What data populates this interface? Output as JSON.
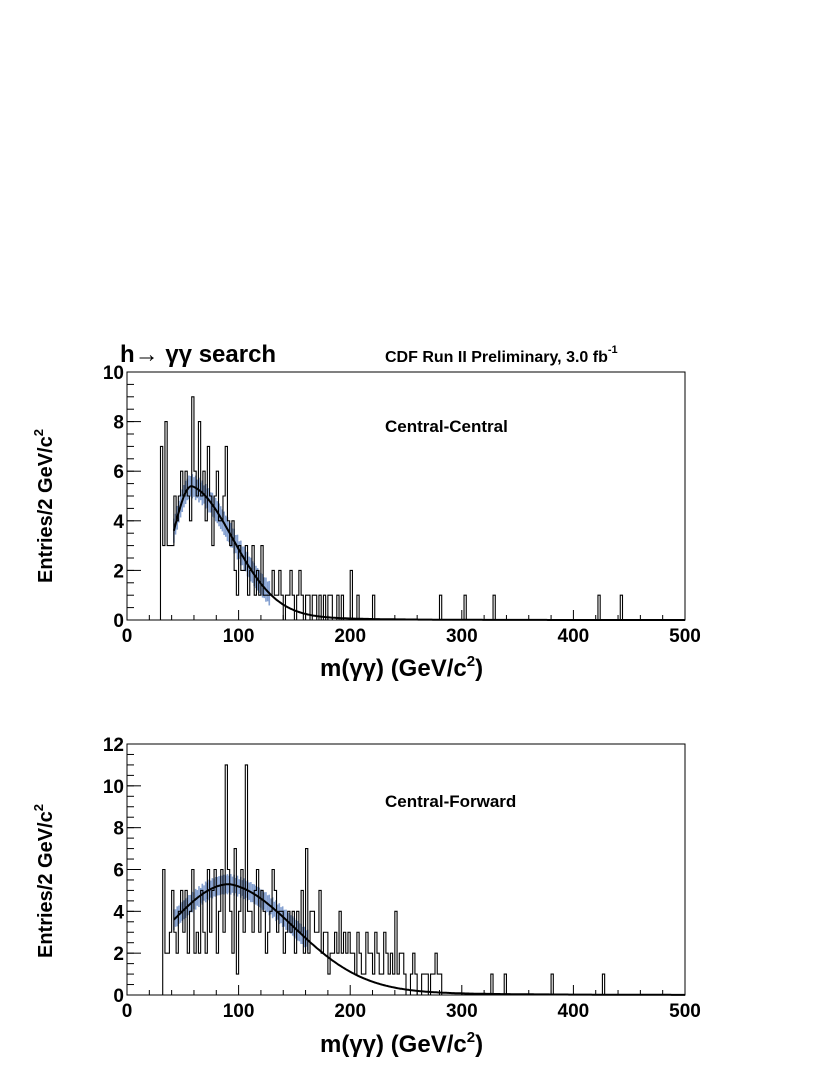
{
  "header": {
    "title": "h→ γγ search",
    "experiment": "CDF Run II Preliminary, 3.0 fb",
    "experiment_sup": "-1"
  },
  "colors": {
    "band": "#6f8fc8",
    "line": "#000000"
  },
  "chart_data": [
    {
      "type": "histogram",
      "category": "Central-Central",
      "xlabel": "m(γγ) (GeV/c",
      "xlabel_sup": "2",
      "xlabel_end": ")",
      "ylabel": "Entries/2 GeV/c",
      "ylabel_sup": "2",
      "xlim": [
        0,
        500
      ],
      "ylim": [
        0,
        10
      ],
      "xticks": [
        0,
        100,
        200,
        300,
        400,
        500
      ],
      "yticks": [
        0,
        2,
        4,
        6,
        8,
        10
      ],
      "bin_width": 2,
      "bins_x": [
        30,
        32,
        34,
        36,
        38,
        40,
        42,
        44,
        46,
        48,
        50,
        52,
        54,
        56,
        58,
        60,
        62,
        64,
        66,
        68,
        70,
        72,
        74,
        76,
        78,
        80,
        82,
        84,
        86,
        88,
        90,
        92,
        94,
        96,
        98,
        100,
        102,
        104,
        106,
        108,
        110,
        112,
        114,
        116,
        118,
        120,
        122,
        124,
        126,
        128,
        130,
        132,
        134,
        136,
        138,
        140,
        142,
        144,
        146,
        148,
        150,
        152,
        154,
        156,
        158,
        160,
        162,
        164,
        166,
        168,
        170,
        172,
        174,
        176,
        178,
        180,
        182,
        184,
        186,
        188,
        190,
        192,
        194,
        196,
        198,
        200,
        202,
        204,
        206,
        208,
        210,
        212,
        214,
        216,
        218,
        220,
        222,
        280,
        282,
        302,
        304,
        328,
        330,
        422,
        424,
        442,
        444
      ],
      "bins_y": [
        7,
        3,
        8,
        3,
        3,
        3,
        5,
        4,
        5,
        6,
        5,
        6,
        5,
        4,
        9,
        6,
        5,
        8,
        5,
        6,
        4,
        7,
        5,
        3,
        5,
        6,
        4,
        4,
        5,
        7,
        4,
        3,
        4,
        2,
        1,
        3,
        2,
        2,
        3,
        1,
        2,
        3,
        1,
        2,
        1,
        3,
        1,
        1,
        1,
        1,
        2,
        1,
        1,
        2,
        1,
        0,
        1,
        1,
        2,
        1,
        0,
        1,
        2,
        1,
        0,
        1,
        1,
        0,
        1,
        1,
        0,
        1,
        0,
        1,
        0,
        1,
        1,
        0,
        0,
        1,
        0,
        1,
        0,
        0,
        0,
        2,
        0,
        0,
        1,
        0,
        0,
        0,
        0,
        0,
        0,
        1,
        0,
        1,
        0,
        1,
        0,
        1,
        0,
        1,
        0,
        1,
        0
      ],
      "fit_peak_x": 58,
      "fit_peak_y": 5.4,
      "fit_start_x": 42,
      "fit_start_y": 3.6
    },
    {
      "type": "histogram",
      "category": "Central-Forward",
      "xlabel": "m(γγ) (GeV/c",
      "xlabel_sup": "2",
      "xlabel_end": ")",
      "ylabel": "Entries/2 GeV/c",
      "ylabel_sup": "2",
      "xlim": [
        0,
        500
      ],
      "ylim": [
        0,
        12
      ],
      "xticks": [
        0,
        100,
        200,
        300,
        400,
        500
      ],
      "yticks": [
        0,
        2,
        4,
        6,
        8,
        10,
        12
      ],
      "bin_width": 2,
      "bins_x": [
        32,
        34,
        36,
        38,
        40,
        42,
        44,
        46,
        48,
        50,
        52,
        54,
        56,
        58,
        60,
        62,
        64,
        66,
        68,
        70,
        72,
        74,
        76,
        78,
        80,
        82,
        84,
        86,
        88,
        90,
        92,
        94,
        96,
        98,
        100,
        102,
        104,
        106,
        108,
        110,
        112,
        114,
        116,
        118,
        120,
        122,
        124,
        126,
        128,
        130,
        132,
        134,
        136,
        138,
        140,
        142,
        144,
        146,
        148,
        150,
        152,
        154,
        156,
        158,
        160,
        162,
        164,
        166,
        168,
        170,
        172,
        174,
        176,
        178,
        180,
        182,
        184,
        186,
        188,
        190,
        192,
        194,
        196,
        198,
        200,
        202,
        204,
        206,
        208,
        210,
        212,
        214,
        216,
        218,
        220,
        222,
        224,
        226,
        228,
        230,
        232,
        234,
        236,
        238,
        240,
        242,
        244,
        246,
        248,
        250,
        252,
        254,
        256,
        258,
        260,
        262,
        264,
        266,
        268,
        270,
        272,
        274,
        276,
        278,
        280,
        282,
        284,
        326,
        328,
        338,
        340,
        380,
        382,
        426,
        428
      ],
      "bins_y": [
        6,
        2,
        2,
        3,
        5,
        3,
        2,
        4,
        5,
        3,
        5,
        2,
        4,
        6,
        2,
        3,
        2,
        5,
        3,
        2,
        6,
        3,
        5,
        6,
        2,
        4,
        6,
        3,
        11,
        6,
        4,
        2,
        7,
        1,
        4,
        6,
        3,
        11,
        4,
        4,
        3,
        5,
        6,
        3,
        5,
        4,
        2,
        3,
        4,
        6,
        5,
        3,
        4,
        4,
        2,
        3,
        4,
        3,
        4,
        2,
        4,
        3,
        5,
        2,
        7,
        2,
        4,
        4,
        3,
        3,
        5,
        2,
        3,
        3,
        1,
        2,
        2,
        3,
        2,
        4,
        2,
        3,
        2,
        3,
        2,
        2,
        1,
        3,
        2,
        1,
        1,
        3,
        2,
        2,
        1,
        3,
        2,
        1,
        1,
        3,
        2,
        1,
        2,
        1,
        4,
        1,
        2,
        2,
        1,
        0,
        0,
        1,
        2,
        1,
        0,
        0,
        1,
        1,
        1,
        0,
        1,
        1,
        2,
        1,
        1,
        0,
        0,
        1,
        0,
        1,
        0,
        1,
        0,
        1,
        0
      ],
      "fit_peak_x": 92,
      "fit_peak_y": 5.3,
      "fit_start_x": 42,
      "fit_start_y": 3.6
    }
  ]
}
